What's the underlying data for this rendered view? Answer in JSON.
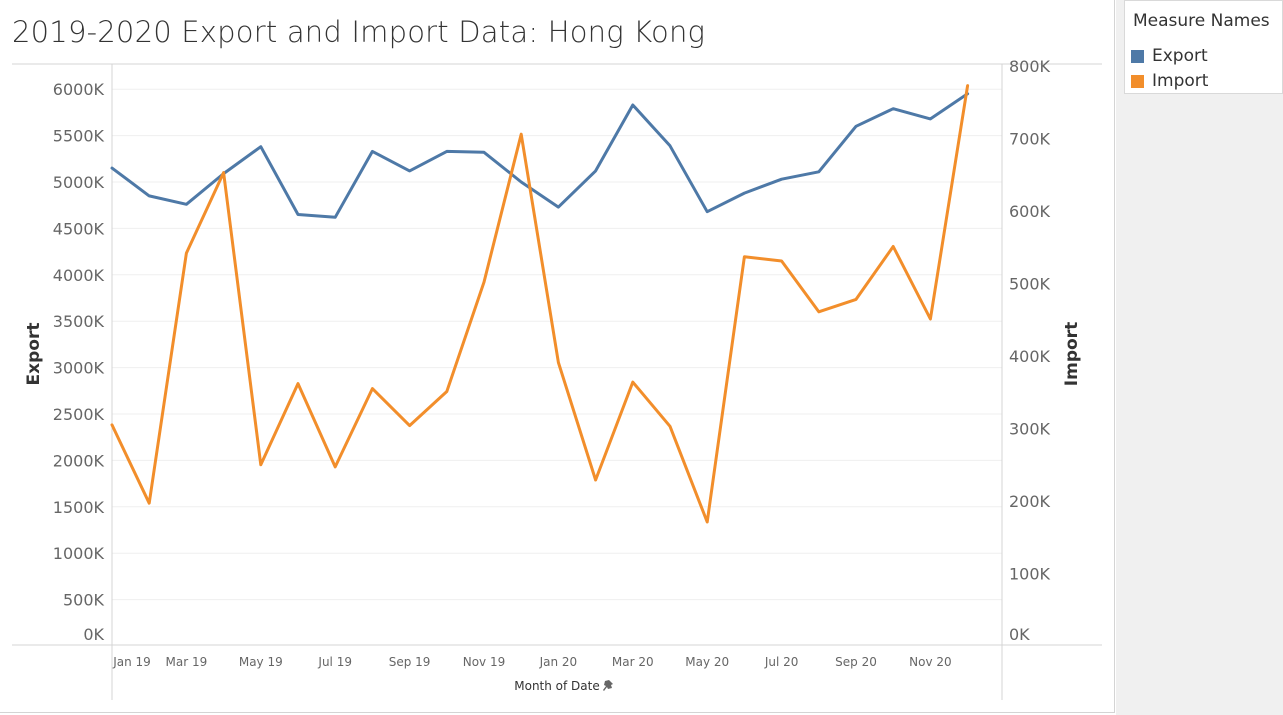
{
  "title": "2019-2020 Export and Import Data: Hong Kong",
  "legend": {
    "title": "Measure Names",
    "items": [
      {
        "label": "Export",
        "color": "#4e79a7"
      },
      {
        "label": "Import",
        "color": "#f28e2b"
      }
    ]
  },
  "chart_data": {
    "type": "line",
    "title": "2019-2020 Export and Import Data: Hong Kong",
    "xlabel": "Month of Date",
    "ylabel_left": "Export",
    "ylabel_right": "Import",
    "x": [
      "Jan 19",
      "Feb 19",
      "Mar 19",
      "Apr 19",
      "May 19",
      "Jun 19",
      "Jul 19",
      "Aug 19",
      "Sep 19",
      "Oct 19",
      "Nov 19",
      "Dec 19",
      "Jan 20",
      "Feb 20",
      "Mar 20",
      "Apr 20",
      "May 20",
      "Jun 20",
      "Jul 20",
      "Aug 20",
      "Sep 20",
      "Oct 20",
      "Nov 20",
      "Dec 20"
    ],
    "x_tick_labels": [
      "Jan 19",
      "Mar 19",
      "May 19",
      "Jul 19",
      "Sep 19",
      "Nov 19",
      "Jan 20",
      "Mar 20",
      "May 20",
      "Jul 20",
      "Sep 20",
      "Nov 20"
    ],
    "y_left_ticks": [
      "0K",
      "500K",
      "1000K",
      "1500K",
      "2000K",
      "2500K",
      "3000K",
      "3500K",
      "4000K",
      "4500K",
      "5000K",
      "5500K",
      "6000K"
    ],
    "y_right_ticks": [
      "0K",
      "100K",
      "200K",
      "300K",
      "400K",
      "500K",
      "600K",
      "700K",
      "800K"
    ],
    "ylim_left": [
      0,
      6250000
    ],
    "ylim_right": [
      0,
      800000
    ],
    "grid": true,
    "legend_position": "top-right",
    "series": [
      {
        "name": "Export",
        "axis": "left",
        "color": "#4e79a7",
        "values": [
          5150000,
          4850000,
          4760000,
          5090000,
          5380000,
          4650000,
          4620000,
          5330000,
          5120000,
          5330000,
          5320000,
          5000000,
          4730000,
          5120000,
          5830000,
          5390000,
          4680000,
          4880000,
          5030000,
          5110000,
          5600000,
          5790000,
          5680000,
          5950000
        ]
      },
      {
        "name": "Import",
        "axis": "right",
        "color": "#f28e2b",
        "values": [
          305000,
          197000,
          542000,
          653000,
          250000,
          362000,
          247000,
          355000,
          304000,
          351000,
          502000,
          706000,
          391000,
          229000,
          364000,
          303000,
          171000,
          537000,
          531000,
          461000,
          478000,
          551000,
          451000,
          773000
        ]
      }
    ]
  }
}
